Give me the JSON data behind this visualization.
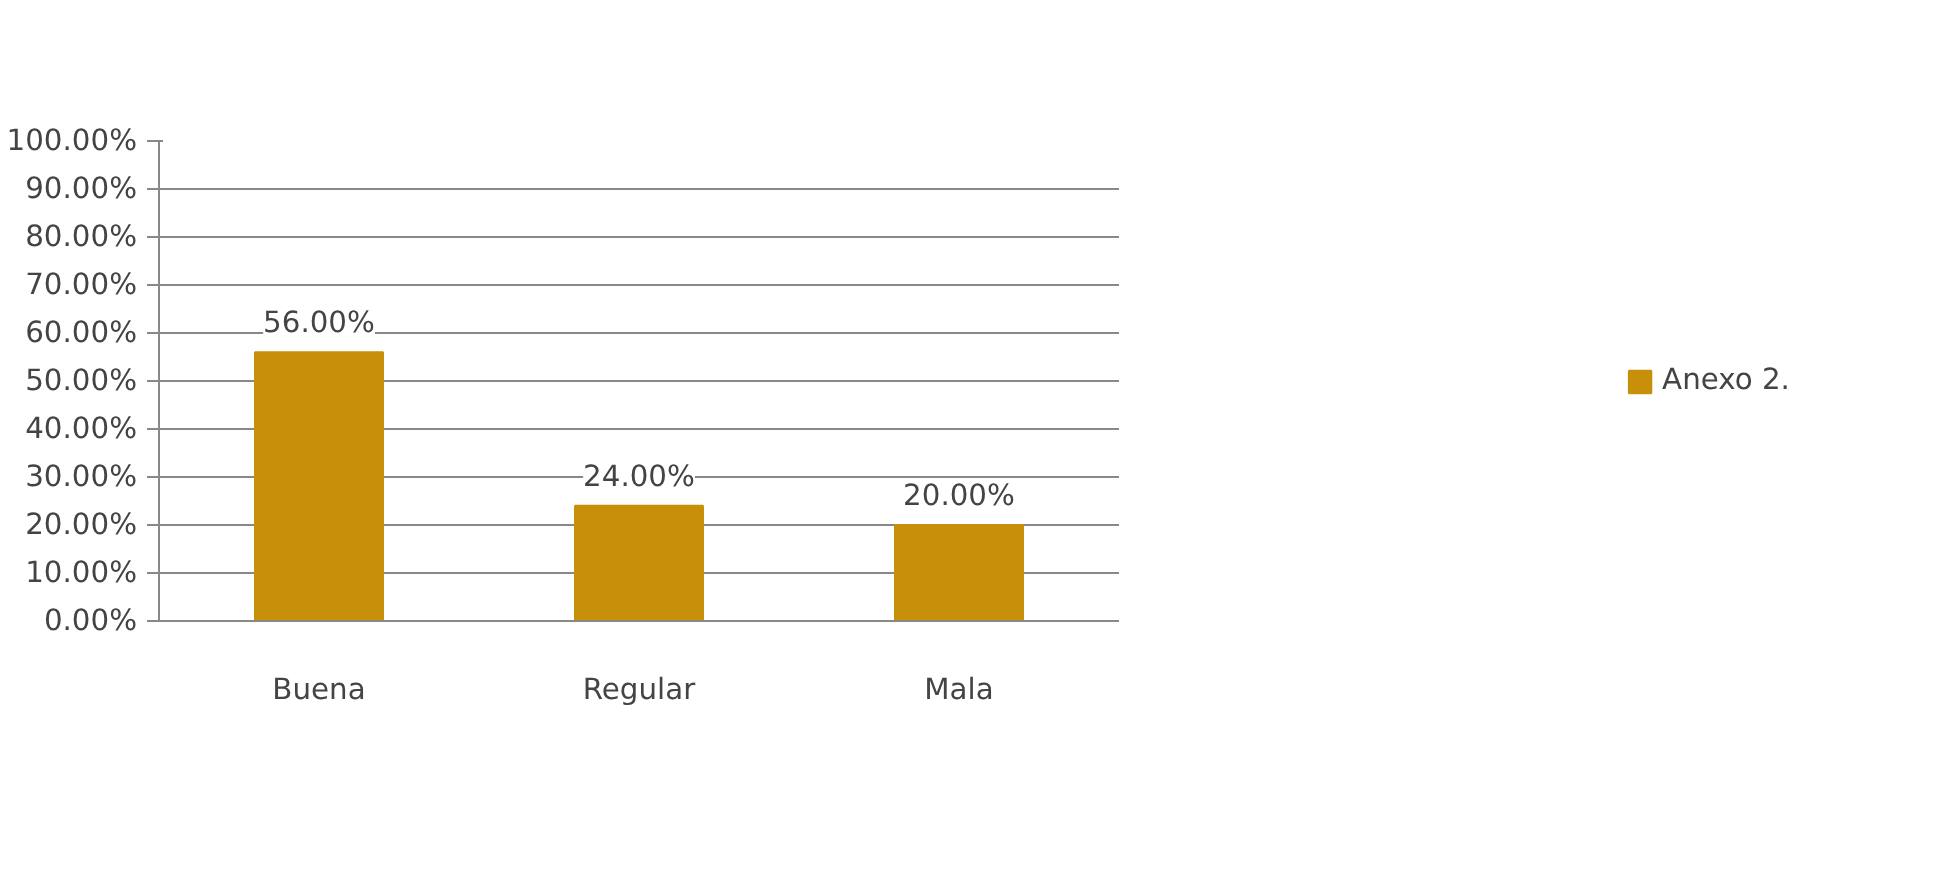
{
  "chart_data": {
    "type": "bar",
    "categories": [
      "Buena",
      "Regular",
      "Mala"
    ],
    "series": [
      {
        "name": "Anexo 2.",
        "color": "#c8900a",
        "values": [
          56,
          24,
          20
        ],
        "value_labels": [
          "56.00%",
          "24.00%",
          "20.00%"
        ]
      }
    ],
    "ylim": [
      0,
      100
    ],
    "yticks": [
      {
        "value": 0,
        "label": "0.00%"
      },
      {
        "value": 10,
        "label": "10.00%"
      },
      {
        "value": 20,
        "label": "20.00%"
      },
      {
        "value": 30,
        "label": "30.00%"
      },
      {
        "value": 40,
        "label": "40.00%"
      },
      {
        "value": 50,
        "label": "50.00%"
      },
      {
        "value": 60,
        "label": "60.00%"
      },
      {
        "value": 70,
        "label": "70.00%"
      },
      {
        "value": 80,
        "label": "80.00%"
      },
      {
        "value": 90,
        "label": "90.00%"
      },
      {
        "value": 100,
        "label": "100.00%"
      }
    ],
    "grid": "y",
    "legend": "right"
  }
}
